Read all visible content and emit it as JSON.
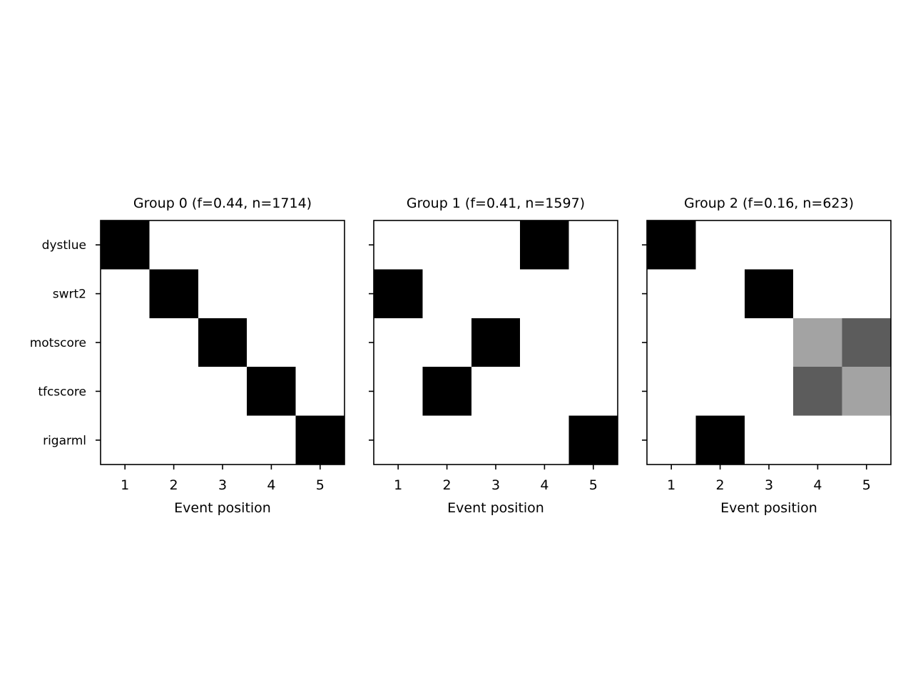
{
  "chart_data": {
    "type": "heatmap",
    "colormap": "greys",
    "value_range": [
      0,
      1
    ],
    "row_labels": [
      "dystlue",
      "swrt2",
      "motscore",
      "tfcscore",
      "rigarml"
    ],
    "x_ticks": [
      "1",
      "2",
      "3",
      "4",
      "5"
    ],
    "xlabel": "Event position",
    "grid": false,
    "panels": [
      {
        "title": "Group 0 (f=0.44, n=1714)",
        "values": [
          [
            1,
            0,
            0,
            0,
            0
          ],
          [
            0,
            1,
            0,
            0,
            0
          ],
          [
            0,
            0,
            1,
            0,
            0
          ],
          [
            0,
            0,
            0,
            1,
            0
          ],
          [
            0,
            0,
            0,
            0,
            1
          ]
        ]
      },
      {
        "title": "Group 1 (f=0.41, n=1597)",
        "values": [
          [
            0,
            0,
            0,
            1,
            0
          ],
          [
            1,
            0,
            0,
            0,
            0
          ],
          [
            0,
            0,
            1,
            0,
            0
          ],
          [
            0,
            1,
            0,
            0,
            0
          ],
          [
            0,
            0,
            0,
            0,
            1
          ]
        ]
      },
      {
        "title": "Group 2 (f=0.16, n=623)",
        "values": [
          [
            1,
            0,
            0,
            0,
            0
          ],
          [
            0,
            0,
            1,
            0,
            0
          ],
          [
            0,
            0,
            0,
            0.36,
            0.64
          ],
          [
            0,
            0,
            0,
            0.64,
            0.36
          ],
          [
            0,
            1,
            0,
            0,
            0
          ]
        ]
      }
    ]
  }
}
